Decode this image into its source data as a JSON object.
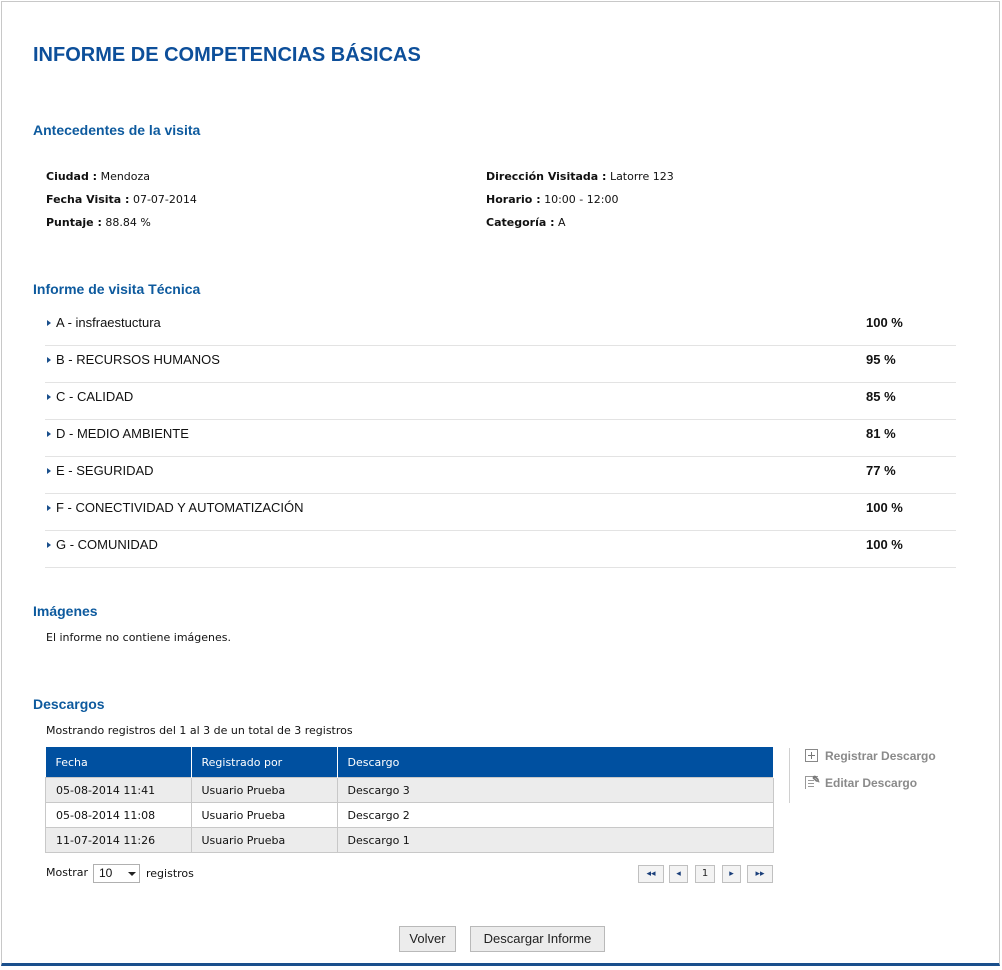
{
  "title": "INFORME DE COMPETENCIAS BÁSICAS",
  "antecedentes": {
    "heading": "Antecedentes de la visita",
    "ciudad_label": "Ciudad :",
    "ciudad_value": "Mendoza",
    "fecha_label": "Fecha Visita :",
    "fecha_value": "07-07-2014",
    "puntaje_label": "Puntaje :",
    "puntaje_value": "88.84 %",
    "direccion_label": "Dirección Visitada :",
    "direccion_value": "Latorre 123",
    "horario_label": "Horario :",
    "horario_value": "10:00 - 12:00",
    "categoria_label": "Categoría :",
    "categoria_value": "A"
  },
  "informe": {
    "heading": "Informe de visita Técnica",
    "items": [
      {
        "label": "A - insfraestuctura",
        "value": "100 %"
      },
      {
        "label": "B - RECURSOS HUMANOS",
        "value": "95 %"
      },
      {
        "label": "C - CALIDAD",
        "value": "85 %"
      },
      {
        "label": "D - MEDIO AMBIENTE",
        "value": "81 %"
      },
      {
        "label": "E - SEGURIDAD",
        "value": "77 %"
      },
      {
        "label": "F - CONECTIVIDAD Y AUTOMATIZACIÓN",
        "value": "100 %"
      },
      {
        "label": "G - COMUNIDAD",
        "value": "100 %"
      }
    ]
  },
  "imagenes": {
    "heading": "Imágenes",
    "text": "El informe no contiene imágenes."
  },
  "descargos": {
    "heading": "Descargos",
    "info": "Mostrando registros del 1 al 3 de un total de 3 registros",
    "columns": [
      "Fecha",
      "Registrado por",
      "Descargo"
    ],
    "rows": [
      [
        "05-08-2014 11:41",
        "Usuario Prueba",
        "Descargo 3"
      ],
      [
        "05-08-2014 11:08",
        "Usuario Prueba",
        "Descargo 2"
      ],
      [
        "11-07-2014 11:26",
        "Usuario Prueba",
        "Descargo 1"
      ]
    ],
    "actions": {
      "registrar": "Registrar Descargo",
      "editar": "Editar Descargo"
    },
    "mostrar_label": "Mostrar",
    "page_size": "10",
    "registros_label": "registros",
    "pagination": {
      "first": "◂◂",
      "prev": "◂",
      "current": "1",
      "next": "▸",
      "last": "▸▸"
    }
  },
  "buttons": {
    "volver": "Volver",
    "descargar": "Descargar Informe"
  },
  "colors": {
    "heading": "#0d5a9e",
    "table_header": "#0050a0"
  }
}
